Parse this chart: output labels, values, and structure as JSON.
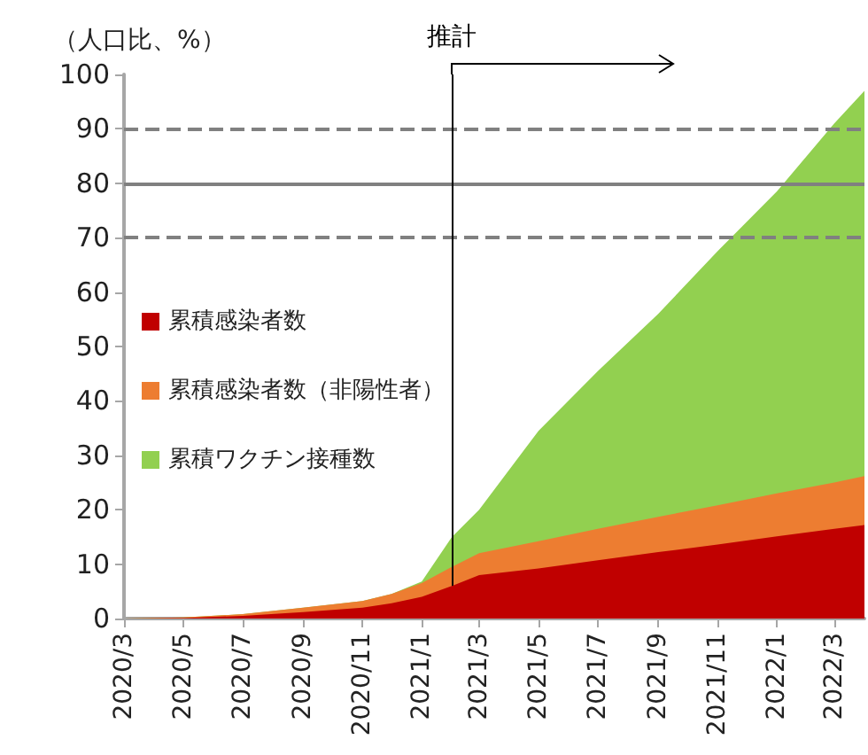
{
  "chart_data": {
    "type": "area",
    "stacked": true,
    "ylabel": "（人口比、%）",
    "x": [
      "2020-03",
      "2020-05",
      "2020-07",
      "2020-09",
      "2020-11",
      "2020-12",
      "2021-01",
      "2021-02",
      "2021-03",
      "2021-05",
      "2021-07",
      "2021-09",
      "2021-11",
      "2022-01",
      "2022-03",
      "2022-04"
    ],
    "series": [
      {
        "name": "累積感染者数",
        "color": "#c00000",
        "values": [
          0,
          0.1,
          0.5,
          1.2,
          2,
          2.8,
          4,
          6,
          8,
          9.2,
          10.7,
          12.2,
          13.6,
          15.1,
          16.5,
          17.2
        ]
      },
      {
        "name": "累積感染者数（非陽性者）",
        "color": "#ed7d31",
        "values": [
          0,
          0.1,
          0.3,
          0.8,
          1.2,
          1.7,
          2.5,
          3.5,
          4,
          5,
          5.8,
          6.5,
          7.2,
          7.9,
          8.5,
          9
        ]
      },
      {
        "name": "累積ワクチン接種数",
        "color": "#92d050",
        "values": [
          0,
          0,
          0,
          0,
          0,
          0,
          0.3,
          5.5,
          8,
          20.3,
          29,
          37.3,
          46.7,
          55.5,
          66,
          70.8
        ]
      }
    ],
    "xlim": [
      "2020-03",
      "2022-04"
    ],
    "xticks": [
      {
        "value": "2020-03",
        "label": "2020/3"
      },
      {
        "value": "2020-05",
        "label": "2020/5"
      },
      {
        "value": "2020-07",
        "label": "2020/7"
      },
      {
        "value": "2020-09",
        "label": "2020/9"
      },
      {
        "value": "2020-11",
        "label": "2020/11"
      },
      {
        "value": "2021-01",
        "label": "2021/1"
      },
      {
        "value": "2021-03",
        "label": "2021/3"
      },
      {
        "value": "2021-05",
        "label": "2021/5"
      },
      {
        "value": "2021-07",
        "label": "2021/7"
      },
      {
        "value": "2021-09",
        "label": "2021/9"
      },
      {
        "value": "2021-11",
        "label": "2021/11"
      },
      {
        "value": "2022-01",
        "label": "2022/1"
      },
      {
        "value": "2022-03",
        "label": "2022/3"
      }
    ],
    "ylim": [
      0,
      100
    ],
    "yticks": [
      0,
      10,
      20,
      30,
      40,
      50,
      60,
      70,
      80,
      90,
      100
    ],
    "grid": false,
    "legend": "left",
    "marker": "none",
    "ref_lines": [
      {
        "axis": "y",
        "value": 90,
        "color": "#808080",
        "line_style": "dashed"
      },
      {
        "axis": "y",
        "value": 80,
        "color": "#808080",
        "line_style": "solid"
      },
      {
        "axis": "y",
        "value": 70,
        "color": "#808080",
        "line_style": "dashed"
      },
      {
        "axis": "x",
        "value": "2021-02",
        "label": "推計",
        "color": "#000000",
        "line_style": "solid"
      }
    ]
  }
}
